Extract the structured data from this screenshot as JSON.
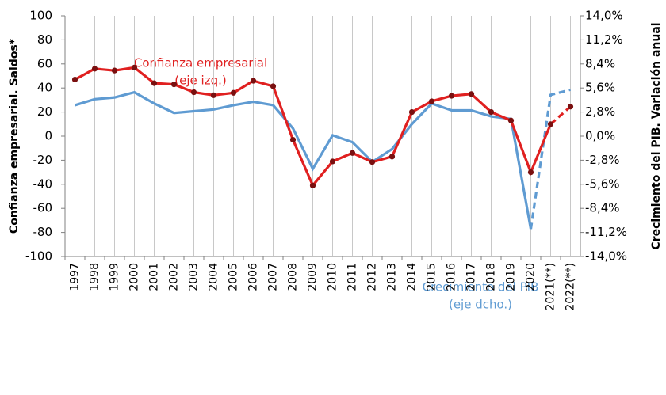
{
  "chart_data": {
    "type": "line",
    "categories": [
      "1997",
      "1998",
      "1999",
      "2000",
      "2001",
      "2002",
      "2003",
      "2004",
      "2005",
      "2006",
      "2007",
      "2008",
      "2009",
      "2010",
      "2011",
      "2012",
      "2013",
      "2014",
      "2015",
      "2016",
      "2017",
      "2018",
      "2019",
      "2020",
      "2021(**)",
      "2022(**)"
    ],
    "series": [
      {
        "name": "Confianza empresarial",
        "name_note": "(eje izq.)",
        "color": "#e02020",
        "marker_color": "#7a1010",
        "dashed_from": 24,
        "values": [
          47,
          56,
          54.5,
          57,
          44,
          43,
          36.5,
          34,
          36,
          46,
          41.5,
          -3,
          -41,
          -21,
          -14,
          -21.5,
          -17,
          20,
          29,
          33.5,
          35,
          20,
          13,
          -30,
          10,
          24.5
        ]
      },
      {
        "name": "Crecimiento del PIB",
        "name_note": "(eje dcho.)",
        "color": "#5f9bd2",
        "axis": "y2",
        "dashed_from": 23,
        "values": [
          3.6,
          4.3,
          4.5,
          5.1,
          3.8,
          2.7,
          2.9,
          3.1,
          3.6,
          4.0,
          3.6,
          0.9,
          -3.8,
          0.1,
          -0.7,
          -3.0,
          -1.5,
          1.4,
          3.8,
          3.0,
          3.0,
          2.3,
          2.0,
          -10.8,
          4.8,
          5.4
        ]
      }
    ],
    "y_label": "Confianza empresarial. Saldos*",
    "y2_label": "Crecimiento del PIB. Variación anual",
    "ylim": [
      -100,
      100
    ],
    "yticks": [
      -100,
      -80,
      -60,
      -40,
      -20,
      0,
      20,
      40,
      60,
      80,
      100
    ],
    "y2lim": [
      -14,
      14
    ],
    "y2ticks": [
      {
        "value": -14,
        "label": "-14,0%"
      },
      {
        "value": -11.2,
        "label": "-11,2%"
      },
      {
        "value": -8.4,
        "label": "-8,4%"
      },
      {
        "value": -5.6,
        "label": "-5,6%"
      },
      {
        "value": -2.8,
        "label": "-2,8%"
      },
      {
        "value": 0,
        "label": "0,0%"
      },
      {
        "value": 2.8,
        "label": "2,8%"
      },
      {
        "value": 5.6,
        "label": "5,6%"
      },
      {
        "value": 8.4,
        "label": "8,4%"
      },
      {
        "value": 11.2,
        "label": "11,2%"
      },
      {
        "value": 14,
        "label": "14,0%"
      }
    ],
    "grid": "x"
  }
}
